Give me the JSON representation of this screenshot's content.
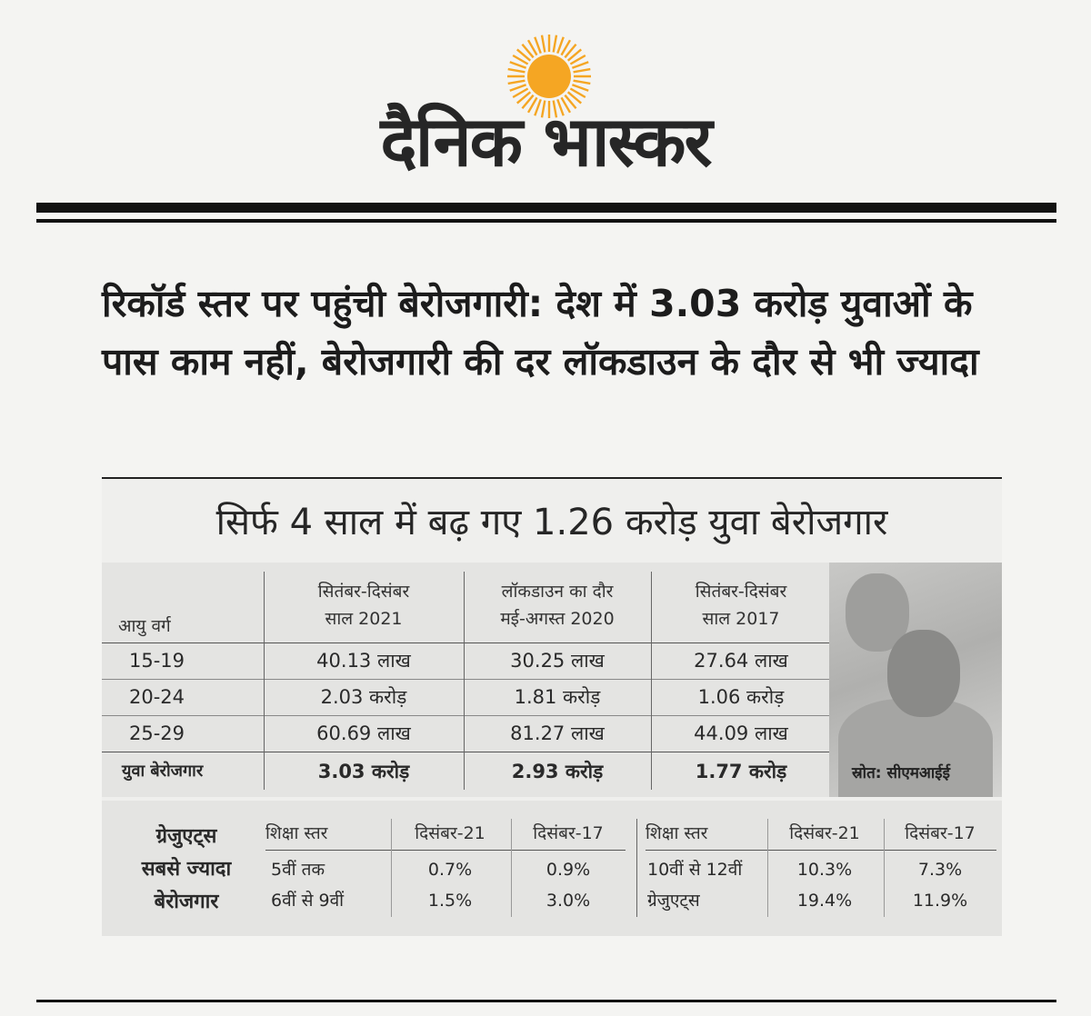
{
  "masthead": {
    "name": "दैनिक भास्कर",
    "sun_color": "#f5a623"
  },
  "headline": "रिकॉर्ड स्तर पर पहुंची बेरोजगारी: देश में 3.03 करोड़ युवाओं के पास काम नहीं, बेरोजगारी की दर लॉकडाउन के दौर से भी ज्यादा",
  "clipping": {
    "title": "सिर्फ 4 साल में बढ़ गए 1.26 करोड़ युवा बेरोजगार",
    "age_table": {
      "corner_header": "आयु वर्ग",
      "columns": [
        {
          "line1": "सितंबर-दिसंबर",
          "line2": "साल 2021"
        },
        {
          "line1": "लॉकडाउन का दौर",
          "line2": "मई-अगस्त 2020"
        },
        {
          "line1": "सितंबर-दिसंबर",
          "line2": "साल 2017"
        }
      ],
      "rows": [
        {
          "label": "15-19",
          "values": [
            "40.13 लाख",
            "30.25 लाख",
            "27.64 लाख"
          ]
        },
        {
          "label": "20-24",
          "values": [
            "2.03 करोड़",
            "1.81 करोड़",
            "1.06 करोड़"
          ]
        },
        {
          "label": "25-29",
          "values": [
            "60.69 लाख",
            "81.27 लाख",
            "44.09 लाख"
          ]
        },
        {
          "label": "युवा बेरोजगार",
          "values": [
            "3.03 करोड़",
            "2.93 करोड़",
            "1.77 करोड़"
          ]
        }
      ],
      "source": "स्रोत: सीएमआईई"
    },
    "education_table": {
      "side_label": [
        "ग्रेजुएट्स",
        "सबसे ज्यादा",
        "बेरोजगार"
      ],
      "headers": [
        "शिक्षा स्तर",
        "दिसंबर-21",
        "दिसंबर-17",
        "शिक्षा स्तर",
        "दिसंबर-21",
        "दिसंबर-17"
      ],
      "rows": [
        [
          "5वीं तक",
          "0.7%",
          "0.9%",
          "10वीं से 12वीं",
          "10.3%",
          "7.3%"
        ],
        [
          "6वीं से 9वीं",
          "1.5%",
          "3.0%",
          "ग्रेजुएट्स",
          "19.4%",
          "11.9%"
        ]
      ]
    }
  }
}
